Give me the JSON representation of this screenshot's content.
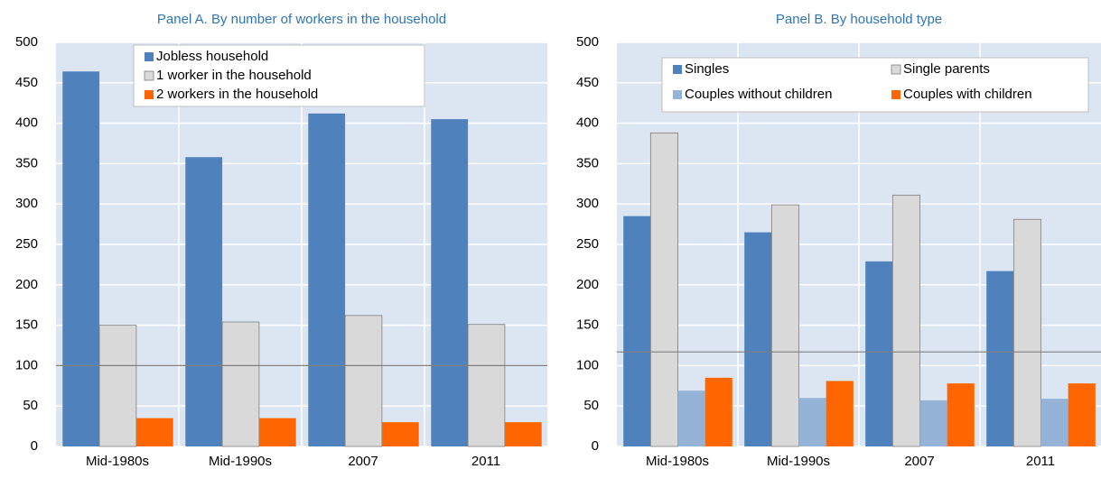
{
  "chart_data": [
    {
      "type": "bar",
      "title": "Panel A. By number of workers in the household",
      "categories": [
        "Mid-1980s",
        "Mid-1990s",
        "2007",
        "2011"
      ],
      "series": [
        {
          "name": "Jobless household",
          "color": "#4f81bd",
          "values": [
            464,
            358,
            412,
            405
          ]
        },
        {
          "name": "1 worker in the household",
          "color": "#d9d9d9",
          "values": [
            150,
            154,
            162,
            151
          ]
        },
        {
          "name": "2 workers in the household",
          "color": "#ff6600",
          "values": [
            35,
            35,
            30,
            30
          ]
        }
      ],
      "ylim": [
        0,
        500
      ],
      "yticks": [
        0,
        50,
        100,
        150,
        200,
        250,
        300,
        350,
        400,
        450,
        500
      ],
      "reference_line": 100,
      "grid": true,
      "legend": "top"
    },
    {
      "type": "bar",
      "title": "Panel B. By household type",
      "categories": [
        "Mid-1980s",
        "Mid-1990s",
        "2007",
        "2011"
      ],
      "series": [
        {
          "name": "Singles",
          "color": "#4f81bd",
          "values": [
            285,
            265,
            229,
            217
          ]
        },
        {
          "name": "Single parents",
          "color": "#d9d9d9",
          "values": [
            388,
            299,
            311,
            281
          ]
        },
        {
          "name": "Couples without children",
          "color": "#95b3d7",
          "values": [
            69,
            60,
            57,
            59
          ]
        },
        {
          "name": "Couples with children",
          "color": "#ff6600",
          "values": [
            85,
            81,
            78,
            78
          ]
        }
      ],
      "ylim": [
        0,
        500
      ],
      "yticks": [
        0,
        50,
        100,
        150,
        200,
        250,
        300,
        350,
        400,
        450,
        500
      ],
      "reference_line": 117,
      "grid": true,
      "legend": "top"
    }
  ]
}
